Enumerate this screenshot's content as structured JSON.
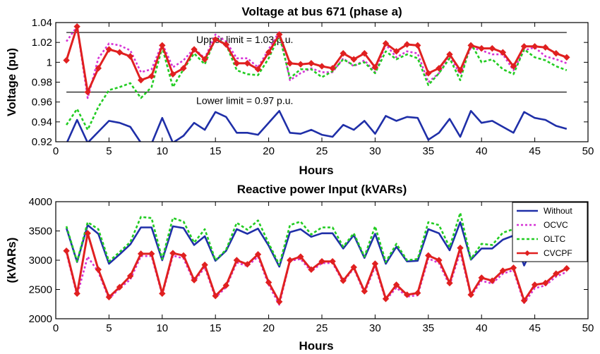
{
  "chart_data": [
    {
      "type": "line",
      "title": "Voltage at bus 671 (phase a)",
      "xlabel": "Hours",
      "ylabel": "Voltage (pu)",
      "xlim": [
        0,
        50
      ],
      "ylim": [
        0.92,
        1.04
      ],
      "xticks": [
        "0",
        "5",
        "10",
        "15",
        "20",
        "25",
        "30",
        "35",
        "40",
        "45",
        "50"
      ],
      "yticks": [
        "0.92",
        "0.94",
        "0.96",
        "0.98",
        "1",
        "1.02",
        "1.04"
      ],
      "grid": false,
      "x": [
        1,
        2,
        3,
        4,
        5,
        6,
        7,
        8,
        9,
        10,
        11,
        12,
        13,
        14,
        15,
        16,
        17,
        18,
        19,
        20,
        21,
        22,
        23,
        24,
        25,
        26,
        27,
        28,
        29,
        30,
        31,
        32,
        33,
        34,
        35,
        36,
        37,
        38,
        39,
        40,
        41,
        42,
        43,
        44,
        45,
        46,
        47,
        48
      ],
      "series": [
        {
          "name": "Without",
          "color": "#1f2fa8",
          "style": "solid",
          "values": [
            0.918,
            0.942,
            0.919,
            0.93,
            0.941,
            0.939,
            0.935,
            0.919,
            0.918,
            0.944,
            0.919,
            0.926,
            0.939,
            0.932,
            0.95,
            0.945,
            0.929,
            0.929,
            0.927,
            0.939,
            0.951,
            0.929,
            0.928,
            0.932,
            0.927,
            0.925,
            0.937,
            0.932,
            0.941,
            0.928,
            0.946,
            0.941,
            0.945,
            0.944,
            0.922,
            0.929,
            0.943,
            0.925,
            0.951,
            0.939,
            0.941,
            0.935,
            0.929,
            0.95,
            0.944,
            0.942,
            0.936,
            0.933
          ]
        },
        {
          "name": "OCVC",
          "color": "#d633d6",
          "style": "dotted",
          "values": [
            1.021,
            1.036,
            0.964,
            1.004,
            1.019,
            1.017,
            1.012,
            0.99,
            0.993,
            1.019,
            0.995,
            1.002,
            1.014,
            1.004,
            1.028,
            1.021,
            1.004,
            1.004,
            0.995,
            1.013,
            1.031,
            0.982,
            0.989,
            0.994,
            0.99,
            0.99,
            1.004,
            0.996,
            1.002,
            0.99,
            1.018,
            1.005,
            1.011,
            1.009,
            0.98,
            0.989,
            1.006,
            0.988,
            1.015,
            1.012,
            1.008,
            1.008,
            0.992,
            1.012,
            1.015,
            1.006,
            1.003,
            0.999
          ]
        },
        {
          "name": "OLTC",
          "color": "#22cc22",
          "style": "dashed",
          "values": [
            0.937,
            0.953,
            0.932,
            0.955,
            0.972,
            0.975,
            0.979,
            0.964,
            0.975,
            1.015,
            0.975,
            0.993,
            1.009,
            0.998,
            1.024,
            1.018,
            0.992,
            0.988,
            0.987,
            1.004,
            1.027,
            0.984,
            0.993,
            0.993,
            0.985,
            0.991,
            1.003,
            0.997,
            1.0,
            0.989,
            1.011,
            1.003,
            1.008,
            1.004,
            0.977,
            0.989,
            1.004,
            0.982,
            1.019,
            1.0,
            1.003,
            0.993,
            0.988,
            1.013,
            1.005,
            1.002,
            0.996,
            0.992
          ]
        },
        {
          "name": "CVCPF",
          "color": "#e02020",
          "style": "solid-marker",
          "values": [
            1.002,
            1.036,
            0.97,
            0.994,
            1.013,
            1.01,
            1.006,
            0.982,
            0.986,
            1.017,
            0.988,
            0.994,
            1.013,
            1.003,
            1.023,
            1.018,
            0.999,
            0.999,
            0.993,
            1.01,
            1.028,
            0.999,
            0.998,
            0.999,
            0.996,
            0.994,
            1.009,
            1.003,
            1.009,
            0.995,
            1.019,
            1.011,
            1.018,
            1.017,
            0.989,
            0.994,
            1.008,
            0.992,
            1.017,
            1.014,
            1.014,
            1.01,
            0.996,
            1.016,
            1.016,
            1.015,
            1.009,
            1.005
          ]
        }
      ],
      "reference_lines": [
        {
          "y": 1.03,
          "label": "Upper limit = 1.03 p.u.",
          "label_x": 14.5
        },
        {
          "y": 0.97,
          "label": "Lower limit = 0.97 p.u.",
          "label_x": 14.5
        }
      ]
    },
    {
      "type": "line",
      "title": "Reactive power Input (kVARs)",
      "xlabel": "Hours",
      "ylabel": "(kVARs)",
      "xlim": [
        0,
        50
      ],
      "ylim": [
        2000,
        4000
      ],
      "xticks": [
        "0",
        "5",
        "10",
        "15",
        "20",
        "25",
        "30",
        "35",
        "40",
        "45",
        "50"
      ],
      "yticks": [
        "2000",
        "2500",
        "3000",
        "3500",
        "4000"
      ],
      "grid": false,
      "legend": "top-right",
      "x": [
        1,
        2,
        3,
        4,
        5,
        6,
        7,
        8,
        9,
        10,
        11,
        12,
        13,
        14,
        15,
        16,
        17,
        18,
        19,
        20,
        21,
        22,
        23,
        24,
        25,
        26,
        27,
        28,
        29,
        30,
        31,
        32,
        33,
        34,
        35,
        36,
        37,
        38,
        39,
        40,
        41,
        42,
        43,
        44,
        45,
        46,
        47,
        48
      ],
      "series": [
        {
          "name": "Without",
          "color": "#1f2fa8",
          "style": "solid",
          "values": [
            3550,
            2970,
            3600,
            3450,
            2940,
            3100,
            3270,
            3560,
            3560,
            3000,
            3580,
            3550,
            3260,
            3410,
            2990,
            3160,
            3530,
            3450,
            3540,
            3250,
            2890,
            3480,
            3530,
            3400,
            3460,
            3460,
            3200,
            3430,
            3040,
            3450,
            2940,
            3230,
            2980,
            2990,
            3530,
            3460,
            3170,
            3650,
            3010,
            3200,
            3200,
            3350,
            3420,
            2910,
            3290,
            3390,
            3480,
            3500
          ]
        },
        {
          "name": "OCVC",
          "color": "#d633d6",
          "style": "dotted",
          "values": [
            3130,
            2400,
            3060,
            2800,
            2340,
            2520,
            2670,
            3070,
            3070,
            2410,
            3080,
            3030,
            2630,
            2880,
            2360,
            2540,
            2960,
            2900,
            3060,
            2580,
            2240,
            2990,
            3020,
            2810,
            2950,
            2950,
            2630,
            2860,
            2440,
            2890,
            2320,
            2530,
            2380,
            2400,
            3030,
            2950,
            2570,
            3140,
            2390,
            2650,
            2600,
            2770,
            2830,
            2270,
            2520,
            2570,
            2720,
            2800
          ]
        },
        {
          "name": "OLTC",
          "color": "#22cc22",
          "style": "dashed",
          "values": [
            3580,
            2980,
            3650,
            3530,
            2980,
            3140,
            3310,
            3740,
            3720,
            3020,
            3720,
            3660,
            3300,
            3530,
            3000,
            3180,
            3640,
            3520,
            3680,
            3290,
            2920,
            3600,
            3660,
            3440,
            3560,
            3560,
            3230,
            3460,
            3060,
            3580,
            2970,
            3280,
            3000,
            3020,
            3650,
            3600,
            3220,
            3810,
            3020,
            3280,
            3260,
            3470,
            3530,
            3000,
            3390,
            3480,
            3570,
            3580
          ]
        },
        {
          "name": "CVCPF",
          "color": "#e02020",
          "style": "solid-marker",
          "values": [
            3160,
            2430,
            3460,
            2840,
            2370,
            2540,
            2730,
            3110,
            3110,
            2430,
            3120,
            3080,
            2660,
            2920,
            2390,
            2570,
            3000,
            2930,
            3100,
            2620,
            2290,
            3000,
            3060,
            2840,
            2980,
            2980,
            2650,
            2880,
            2470,
            2940,
            2340,
            2580,
            2410,
            2440,
            3080,
            3000,
            2610,
            3210,
            2410,
            2700,
            2650,
            2820,
            2870,
            2310,
            2580,
            2610,
            2770,
            2860
          ]
        }
      ]
    }
  ]
}
